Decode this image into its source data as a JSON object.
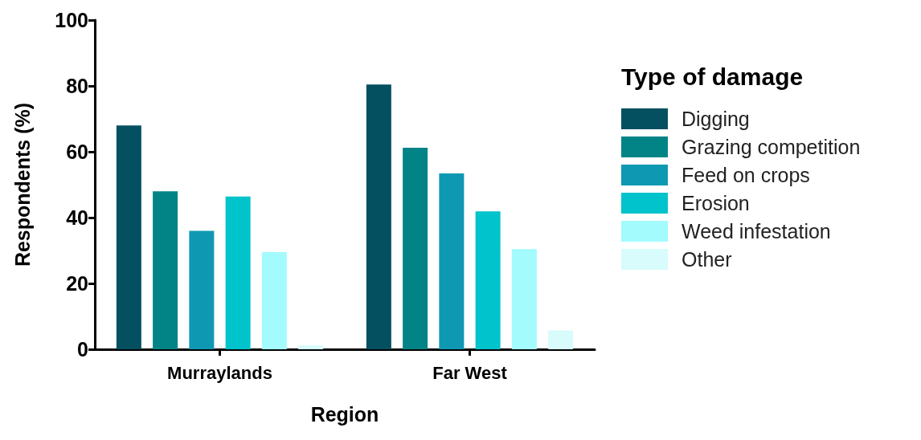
{
  "chart_data": {
    "type": "bar",
    "xlabel": "Region",
    "ylabel": "Respondents (%)",
    "legend_title": "Type of damage",
    "categories": [
      "Murraylands",
      "Far West"
    ],
    "series": [
      {
        "name": "Digging",
        "color": "#055060",
        "values": [
          68,
          80.4
        ]
      },
      {
        "name": "Grazing competition",
        "color": "#028487",
        "values": [
          48,
          61.2
        ]
      },
      {
        "name": "Feed on crops",
        "color": "#0f98b2",
        "values": [
          36,
          53.4
        ]
      },
      {
        "name": "Erosion",
        "color": "#00c3cb",
        "values": [
          46.4,
          41.9
        ]
      },
      {
        "name": "Weed infestation",
        "color": "#a3fbfd",
        "values": [
          29.5,
          30.4
        ]
      },
      {
        "name": "Other",
        "color": "#d8fbfb",
        "values": [
          1.2,
          5.7
        ]
      }
    ],
    "ylim": [
      0,
      100
    ],
    "yticks": [
      0,
      20,
      40,
      60,
      80,
      100
    ],
    "grid": false,
    "legend": "right"
  }
}
